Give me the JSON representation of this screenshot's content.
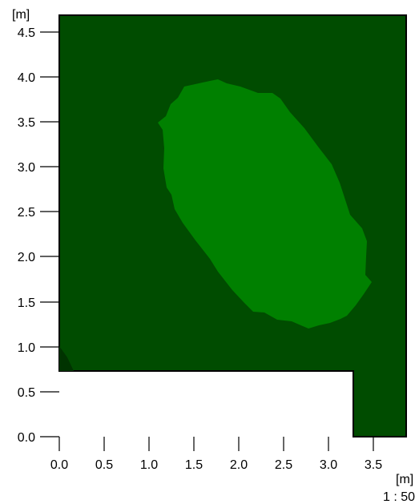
{
  "units": {
    "y": "[m]",
    "x": "[m]"
  },
  "scale": "1 : 50",
  "axes": {
    "y_ticks": [
      "0.0",
      "0.5",
      "1.0",
      "1.5",
      "2.0",
      "2.5",
      "3.0",
      "3.5",
      "4.0",
      "4.5"
    ],
    "x_ticks": [
      "0.0",
      "0.5",
      "1.0",
      "1.5",
      "2.0",
      "2.5",
      "3.0",
      "3.5"
    ]
  },
  "colors": {
    "room_fill": "#004c00",
    "zone_fill": "#008000",
    "corner_fill": "#003300",
    "outline": "#000000"
  }
}
